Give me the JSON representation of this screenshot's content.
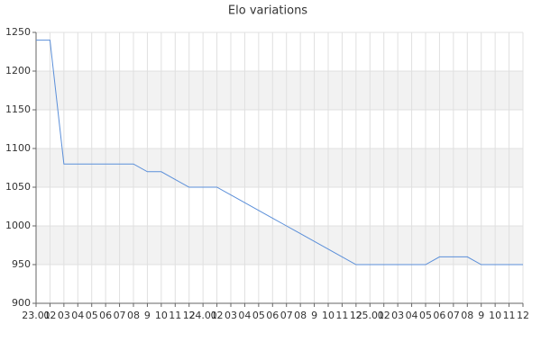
{
  "chart_data": {
    "type": "line",
    "title": "Elo variations",
    "categories": [
      "23.01",
      "02",
      "03",
      "04",
      "05",
      "06",
      "07",
      "08",
      "9",
      "10",
      "11",
      "12",
      "24.01",
      "02",
      "03",
      "04",
      "05",
      "06",
      "07",
      "08",
      "9",
      "10",
      "11",
      "12",
      "25.01",
      "02",
      "03",
      "04",
      "05",
      "06",
      "07",
      "08",
      "9",
      "10",
      "11",
      "12"
    ],
    "series": [
      {
        "name": "Elo",
        "color": "#5b8fd9",
        "values": [
          1240,
          1240,
          1080,
          1080,
          1080,
          1080,
          1080,
          1080,
          1070,
          1070,
          1060,
          1050,
          1050,
          1050,
          1040,
          1030,
          1020,
          1010,
          1000,
          990,
          980,
          970,
          960,
          950,
          950,
          950,
          950,
          950,
          950,
          960,
          960,
          960,
          950,
          950,
          950,
          950
        ]
      }
    ],
    "ylim": [
      900,
      1250
    ],
    "yticks": [
      900,
      950,
      1000,
      1050,
      1100,
      1150,
      1200,
      1250
    ],
    "grid": true,
    "alternate_bands": true
  }
}
